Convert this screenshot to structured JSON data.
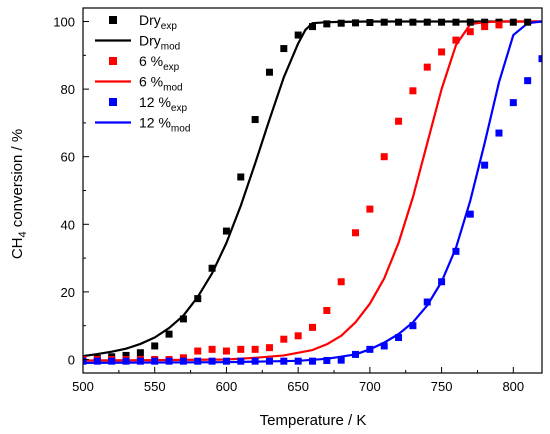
{
  "chart_data": {
    "type": "scatter",
    "xlabel": {
      "main": "Temperature / K"
    },
    "ylabel": {
      "pre": "CH",
      "sub": "4",
      "post": " conversion / %"
    },
    "xlim": [
      500,
      820
    ],
    "ylim": [
      -4,
      104
    ],
    "xticks": [
      500,
      550,
      600,
      650,
      700,
      750,
      800
    ],
    "yticks": [
      0,
      20,
      40,
      60,
      80,
      100
    ],
    "legend_position": "top-left",
    "series": [
      {
        "name_main": "Dry",
        "name_sub": "exp",
        "kind": "markers",
        "color": "#000000",
        "x": [
          500,
          510,
          520,
          530,
          540,
          550,
          560,
          570,
          580,
          590,
          600,
          610,
          620,
          630,
          640,
          650,
          660,
          670,
          680,
          690,
          700,
          710,
          720,
          730,
          740,
          750,
          760,
          770,
          780,
          790,
          800,
          810
        ],
        "y": [
          0,
          0.3,
          0.8,
          1.2,
          2,
          4,
          7.5,
          12,
          18,
          27,
          38,
          54,
          71,
          85,
          92,
          96,
          98.5,
          99.3,
          99.5,
          99.6,
          99.7,
          99.8,
          99.8,
          99.8,
          99.8,
          99.8,
          99.8,
          99.8,
          99.8,
          99.8,
          99.8,
          99.8
        ]
      },
      {
        "name_main": "Dry",
        "name_sub": "mod",
        "kind": "line",
        "color": "#000000",
        "x": [
          500,
          510,
          520,
          530,
          540,
          550,
          560,
          570,
          580,
          590,
          600,
          610,
          620,
          630,
          640,
          650,
          655,
          660,
          670,
          680,
          700,
          750,
          800,
          820
        ],
        "y": [
          1,
          1.6,
          2.3,
          3.2,
          4.6,
          6.5,
          9.3,
          13,
          18.5,
          25.5,
          34.5,
          45.5,
          58,
          71,
          83.5,
          93.5,
          97.5,
          99.5,
          99.8,
          99.9,
          100,
          100,
          100,
          100
        ]
      },
      {
        "name_main": "6 %",
        "name_sub": "exp",
        "kind": "markers",
        "color": "#ff0000",
        "x": [
          500,
          510,
          520,
          530,
          540,
          550,
          560,
          570,
          580,
          590,
          600,
          610,
          620,
          630,
          640,
          650,
          660,
          670,
          680,
          690,
          700,
          710,
          720,
          730,
          740,
          750,
          760,
          770,
          780,
          790
        ],
        "y": [
          0,
          0,
          0,
          0,
          0,
          0,
          0,
          0.5,
          2.5,
          3,
          2.5,
          3,
          3,
          3.5,
          6,
          7,
          9.5,
          14.5,
          23,
          37.5,
          44.5,
          60,
          70.5,
          79.5,
          86.5,
          91,
          94.5,
          97,
          98.5,
          99
        ]
      },
      {
        "name_main": "6 %",
        "name_sub": "mod",
        "kind": "line",
        "color": "#ff0000",
        "x": [
          500,
          550,
          600,
          620,
          640,
          660,
          670,
          680,
          690,
          700,
          710,
          720,
          730,
          740,
          750,
          760,
          770,
          780,
          790,
          800,
          820
        ],
        "y": [
          -0.3,
          -0.2,
          0,
          0.5,
          1.2,
          2.8,
          4.5,
          7,
          11,
          16.5,
          24,
          34.5,
          48,
          64,
          80,
          93,
          99.2,
          99.8,
          100,
          100,
          100
        ]
      },
      {
        "name_main": "12 %",
        "name_sub": "exp",
        "kind": "markers",
        "color": "#0000ff",
        "x": [
          500,
          510,
          520,
          530,
          540,
          550,
          560,
          570,
          580,
          590,
          600,
          610,
          620,
          630,
          640,
          650,
          660,
          670,
          680,
          690,
          700,
          710,
          720,
          730,
          740,
          750,
          760,
          770,
          780,
          790,
          800,
          810,
          820
        ],
        "y": [
          -0.5,
          -0.5,
          -0.5,
          -0.5,
          -0.5,
          -0.5,
          -0.5,
          -0.5,
          -0.5,
          -0.5,
          -0.5,
          -0.5,
          -0.5,
          -0.5,
          -0.5,
          -0.5,
          -0.5,
          -0.3,
          -0.2,
          1.5,
          3,
          4,
          6.5,
          10,
          17,
          23,
          32,
          43,
          57.5,
          67,
          76,
          82.5,
          89
        ]
      },
      {
        "name_main": "12 %",
        "name_sub": "mod",
        "kind": "line",
        "color": "#0000ff",
        "x": [
          500,
          600,
          650,
          670,
          690,
          700,
          710,
          720,
          730,
          740,
          750,
          760,
          770,
          780,
          790,
          800,
          810,
          820
        ],
        "y": [
          -1,
          -0.8,
          -0.4,
          0.2,
          1.5,
          3,
          5,
          7.5,
          11,
          16,
          23,
          33,
          47,
          64,
          82,
          96,
          99.5,
          100
        ]
      }
    ]
  }
}
